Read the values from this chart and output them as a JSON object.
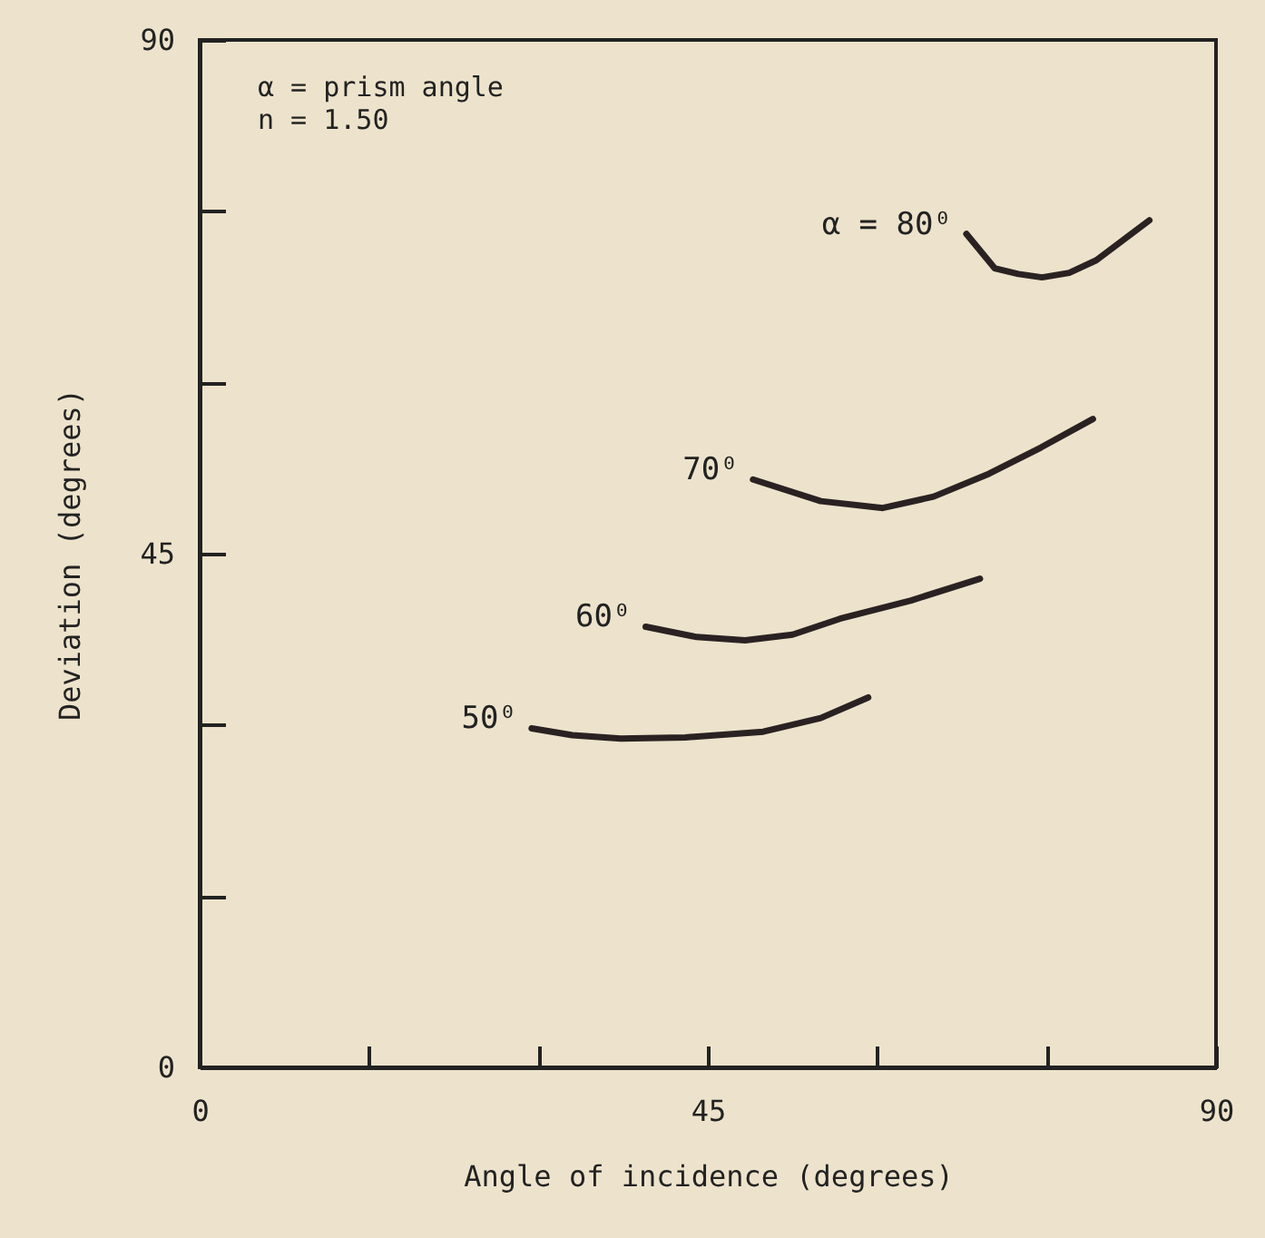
{
  "chart_data": {
    "type": "line",
    "xlabel": "Angle of incidence (degrees)",
    "ylabel": "Deviation (degrees)",
    "annotations": [
      "α = prism angle",
      "n = 1.50"
    ],
    "xlim": [
      0,
      90
    ],
    "xticks": [
      0,
      {
        "value": 15,
        "label": null
      },
      {
        "value": 30,
        "label": null
      },
      45,
      {
        "value": 60,
        "label": null
      },
      {
        "value": 75,
        "label": null
      },
      90
    ],
    "ylim": [
      0,
      90
    ],
    "yticks": [
      0,
      {
        "value": 15,
        "label": null
      },
      {
        "value": 30,
        "label": null
      },
      45,
      {
        "value": 60,
        "label": null
      },
      {
        "value": 75,
        "label": null
      },
      90
    ],
    "grid": false,
    "legend": false,
    "marker": "none",
    "line_style": "solid",
    "series": [
      {
        "name": "50⁰",
        "color": "#2a2222",
        "x": [
          29.4,
          33,
          37.3,
          43,
          49.9,
          55,
          59.2
        ],
        "values": [
          29.7,
          29.1,
          28.8,
          28.9,
          29.4,
          30.6,
          32.4
        ]
      },
      {
        "name": "60⁰",
        "color": "#2a2222",
        "x": [
          39.5,
          44,
          48.3,
          52.5,
          56.7,
          63,
          69.1
        ],
        "values": [
          38.6,
          37.7,
          37.4,
          37.9,
          39.3,
          40.9,
          42.8
        ]
      },
      {
        "name": "70⁰",
        "color": "#2a2222",
        "x": [
          49.0,
          55,
          60.5,
          65,
          69.9,
          74.5,
          79.1
        ],
        "values": [
          51.5,
          49.6,
          49.0,
          50.0,
          52.0,
          54.3,
          56.8
        ]
      },
      {
        "name": "α = 80⁰",
        "color": "#2a2222",
        "x": [
          67.9,
          70.4,
          72.5,
          74.6,
          77,
          79.4,
          84.1
        ],
        "values": [
          73.0,
          70.0,
          69.5,
          69.2,
          69.6,
          70.7,
          74.2
        ]
      }
    ]
  }
}
